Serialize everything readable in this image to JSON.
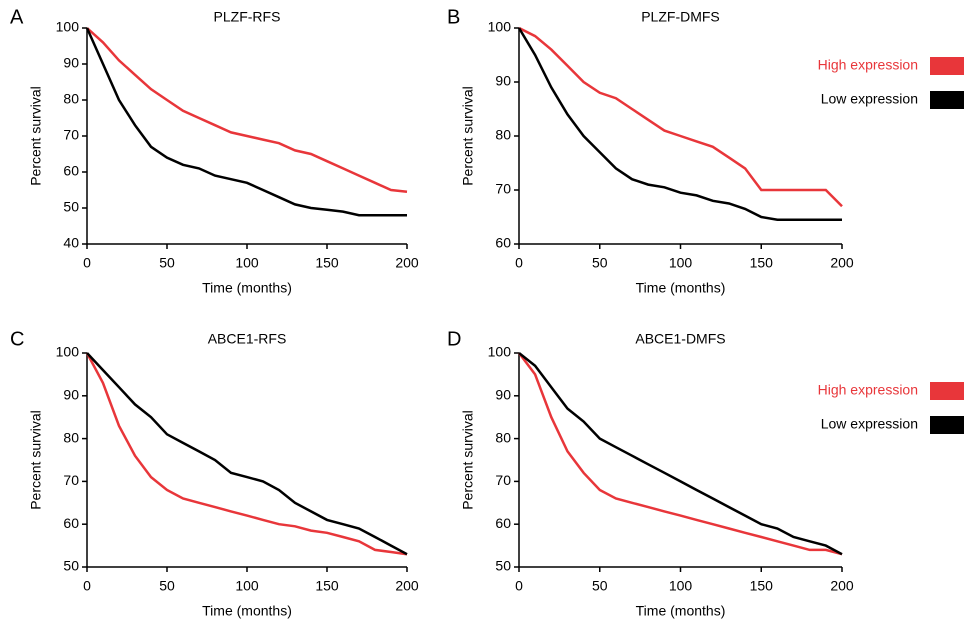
{
  "chart_data": [
    {
      "type": "line",
      "label": "A",
      "title": "PLZF-RFS",
      "x_label": "Time (months)",
      "y_label": "Percent survival",
      "x": [
        0,
        10,
        20,
        30,
        40,
        50,
        60,
        70,
        80,
        90,
        100,
        110,
        120,
        130,
        140,
        150,
        160,
        170,
        180,
        190,
        200
      ],
      "xlim": [
        0,
        200
      ],
      "xticks": [
        0,
        50,
        100,
        150,
        200
      ],
      "ylim": [
        40,
        100
      ],
      "yticks": [
        40,
        50,
        60,
        70,
        80,
        90,
        100
      ],
      "series": [
        {
          "color": "#e8363a",
          "values": [
            100,
            96,
            91,
            87,
            83,
            80,
            77,
            75,
            73,
            71,
            70,
            69,
            68,
            66,
            65,
            63,
            61,
            59,
            57,
            55,
            54.5
          ]
        },
        {
          "color": "#000000",
          "values": [
            100,
            90,
            80,
            73,
            67,
            64,
            62,
            61,
            59,
            58,
            57,
            55,
            53,
            51,
            50,
            49.5,
            49,
            48,
            48,
            48,
            48
          ]
        }
      ]
    },
    {
      "type": "line",
      "label": "B",
      "title": "PLZF-DMFS",
      "x_label": "Time (months)",
      "y_label": "Percent survival",
      "x": [
        0,
        10,
        20,
        30,
        40,
        50,
        60,
        70,
        80,
        90,
        100,
        110,
        120,
        130,
        140,
        150,
        160,
        170,
        180,
        190,
        200
      ],
      "xlim": [
        0,
        200
      ],
      "xticks": [
        0,
        50,
        100,
        150,
        200
      ],
      "ylim": [
        60,
        100
      ],
      "yticks": [
        60,
        70,
        80,
        90,
        100
      ],
      "series": [
        {
          "name": "High expression",
          "color": "#e8363a",
          "values": [
            100,
            98.5,
            96,
            93,
            90,
            88,
            87,
            85,
            83,
            81,
            80,
            79,
            78,
            76,
            74,
            70,
            70,
            70,
            70,
            70,
            67
          ]
        },
        {
          "name": "Low expression",
          "color": "#000000",
          "values": [
            100,
            95,
            89,
            84,
            80,
            77,
            74,
            72,
            71,
            70.5,
            69.5,
            69,
            68,
            67.5,
            66.5,
            65,
            64.5,
            64.5,
            64.5,
            64.5,
            64.5
          ]
        }
      ]
    },
    {
      "type": "line",
      "label": "C",
      "title": "ABCE1-RFS",
      "x_label": "Time (months)",
      "y_label": "Percent survival",
      "x": [
        0,
        10,
        20,
        30,
        40,
        50,
        60,
        70,
        80,
        90,
        100,
        110,
        120,
        130,
        140,
        150,
        160,
        170,
        180,
        190,
        200
      ],
      "xlim": [
        0,
        200
      ],
      "xticks": [
        0,
        50,
        100,
        150,
        200
      ],
      "ylim": [
        50,
        100
      ],
      "yticks": [
        50,
        60,
        70,
        80,
        90,
        100
      ],
      "series": [
        {
          "color": "#e8363a",
          "values": [
            100,
            93,
            83,
            76,
            71,
            68,
            66,
            65,
            64,
            63,
            62,
            61,
            60,
            59.5,
            58.5,
            58,
            57,
            56,
            54,
            53.5,
            53
          ]
        },
        {
          "color": "#000000",
          "values": [
            100,
            96,
            92,
            88,
            85,
            81,
            79,
            77,
            75,
            72,
            71,
            70,
            68,
            65,
            63,
            61,
            60,
            59,
            57,
            55,
            53
          ]
        }
      ]
    },
    {
      "type": "line",
      "label": "D",
      "title": "ABCE1-DMFS",
      "x_label": "Time (months)",
      "y_label": "Percent survival",
      "x": [
        0,
        10,
        20,
        30,
        40,
        50,
        60,
        70,
        80,
        90,
        100,
        110,
        120,
        130,
        140,
        150,
        160,
        170,
        180,
        190,
        200
      ],
      "xlim": [
        0,
        200
      ],
      "xticks": [
        0,
        50,
        100,
        150,
        200
      ],
      "ylim": [
        50,
        100
      ],
      "yticks": [
        50,
        60,
        70,
        80,
        90,
        100
      ],
      "series": [
        {
          "name": "High expression",
          "color": "#e8363a",
          "values": [
            100,
            95,
            85,
            77,
            72,
            68,
            66,
            65,
            64,
            63,
            62,
            61,
            60,
            59,
            58,
            57,
            56,
            55,
            54,
            54,
            53
          ]
        },
        {
          "name": "Low expression",
          "color": "#000000",
          "values": [
            100,
            97,
            92,
            87,
            84,
            80,
            78,
            76,
            74,
            72,
            70,
            68,
            66,
            64,
            62,
            60,
            59,
            57,
            56,
            55,
            53
          ]
        }
      ]
    }
  ]
}
